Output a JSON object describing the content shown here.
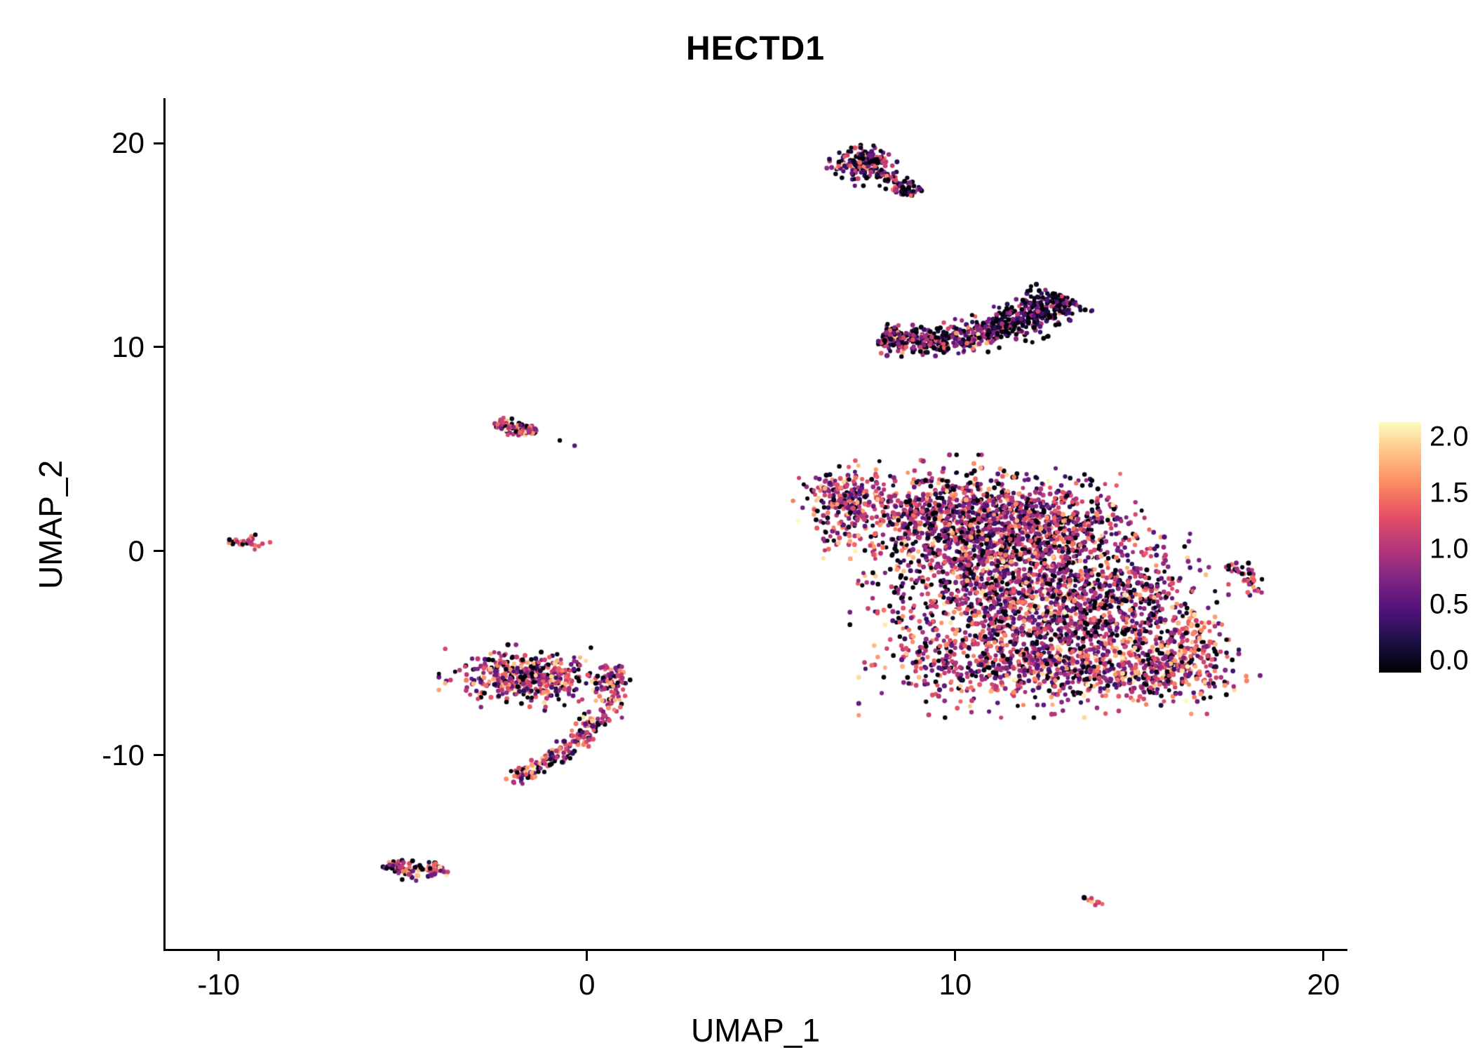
{
  "chart_data": {
    "type": "scatter",
    "title": "HECTD1",
    "xlabel": "UMAP_1",
    "ylabel": "UMAP_2",
    "xlim": [
      -11.5,
      20.65
    ],
    "ylim": [
      -19.6,
      22.2
    ],
    "x_ticks": [
      -10,
      0,
      10,
      20
    ],
    "x_tick_labels": [
      "-10",
      "0",
      "10",
      "20"
    ],
    "y_ticks": [
      -10,
      0,
      10,
      20
    ],
    "y_tick_labels": [
      "-10",
      "0",
      "10",
      "20"
    ],
    "grid": false,
    "legend_position": "right",
    "color": {
      "range": [
        0,
        2
      ],
      "colormap": "magma",
      "stops": [
        [
          0.0,
          "#000004"
        ],
        [
          0.13,
          "#1D1147"
        ],
        [
          0.25,
          "#51127C"
        ],
        [
          0.38,
          "#822681"
        ],
        [
          0.5,
          "#B63679"
        ],
        [
          0.63,
          "#E65164"
        ],
        [
          0.75,
          "#FB8861"
        ],
        [
          0.88,
          "#FEC287"
        ],
        [
          1.0,
          "#FCFDBF"
        ]
      ]
    },
    "legend": {
      "tick_labels": [
        "2.0",
        "1.5",
        "1.0",
        "0.5",
        "0.0"
      ],
      "tick_values": [
        2.0,
        1.5,
        1.0,
        0.5,
        0.0
      ]
    },
    "clusters": [
      {
        "name": "top-streak-head",
        "kind": "gauss",
        "cx": 7.5,
        "cy": 19.0,
        "sx": 0.38,
        "sy": 0.42,
        "n": 150,
        "v_mean": 0.75,
        "v_sd": 0.5,
        "zero_frac": 0.32
      },
      {
        "name": "top-streak-tail",
        "kind": "path",
        "pts": [
          [
            7.85,
            18.55
          ],
          [
            8.35,
            18.05
          ],
          [
            8.95,
            17.5
          ]
        ],
        "w": 0.16,
        "n": 85,
        "v_mean": 0.8,
        "v_sd": 0.45,
        "zero_frac": 0.3
      },
      {
        "name": "crescent-left",
        "kind": "path",
        "pts": [
          [
            7.95,
            10.45
          ],
          [
            8.8,
            10.2
          ],
          [
            9.8,
            10.3
          ],
          [
            10.8,
            10.75
          ]
        ],
        "w": 0.36,
        "n": 330,
        "v_mean": 0.85,
        "v_sd": 0.45,
        "zero_frac": 0.3
      },
      {
        "name": "crescent-right",
        "kind": "path",
        "pts": [
          [
            10.8,
            10.75
          ],
          [
            11.7,
            11.2
          ],
          [
            12.4,
            11.8
          ],
          [
            12.95,
            12.5
          ]
        ],
        "w": 0.4,
        "n": 380,
        "v_mean": 0.55,
        "v_sd": 0.45,
        "zero_frac": 0.5
      },
      {
        "name": "main-left-tip",
        "kind": "gauss",
        "cx": 7.0,
        "cy": 2.4,
        "sx": 0.55,
        "sy": 0.8,
        "n": 230,
        "v_mean": 1.0,
        "v_sd": 0.45,
        "zero_frac": 0.15
      },
      {
        "name": "main-upper-mid",
        "kind": "gauss",
        "cx": 9.8,
        "cy": 1.6,
        "sx": 1.3,
        "sy": 1.2,
        "n": 760,
        "v_mean": 0.95,
        "v_sd": 0.45,
        "zero_frac": 0.18
      },
      {
        "name": "main-upper-right",
        "kind": "gauss",
        "cx": 12.3,
        "cy": 1.2,
        "sx": 1.3,
        "sy": 1.1,
        "n": 650,
        "v_mean": 0.9,
        "v_sd": 0.45,
        "zero_frac": 0.2
      },
      {
        "name": "main-center",
        "kind": "gauss",
        "cx": 11.3,
        "cy": -1.8,
        "sx": 1.6,
        "sy": 1.3,
        "n": 900,
        "v_mean": 0.95,
        "v_sd": 0.45,
        "zero_frac": 0.18
      },
      {
        "name": "main-right",
        "kind": "gauss",
        "cx": 14.3,
        "cy": -2.6,
        "sx": 1.2,
        "sy": 1.4,
        "n": 560,
        "v_mean": 0.95,
        "v_sd": 0.5,
        "zero_frac": 0.18
      },
      {
        "name": "main-bottom",
        "kind": "gauss",
        "cx": 11.8,
        "cy": -5.3,
        "sx": 1.7,
        "sy": 1.1,
        "n": 800,
        "v_mean": 1.0,
        "v_sd": 0.45,
        "zero_frac": 0.15
      },
      {
        "name": "main-bottom-right",
        "kind": "gauss",
        "cx": 15.5,
        "cy": -5.9,
        "sx": 1.1,
        "sy": 0.8,
        "n": 310,
        "v_mean": 1.0,
        "v_sd": 0.5,
        "zero_frac": 0.15
      },
      {
        "name": "main-right-tip",
        "kind": "gauss",
        "cx": 16.4,
        "cy": -4.6,
        "sx": 0.5,
        "sy": 0.9,
        "n": 120,
        "v_mean": 1.1,
        "v_sd": 0.45,
        "zero_frac": 0.12
      },
      {
        "name": "right-streak",
        "kind": "path",
        "pts": [
          [
            17.55,
            -0.6
          ],
          [
            17.95,
            -1.3
          ],
          [
            18.2,
            -2.1
          ]
        ],
        "w": 0.14,
        "n": 40,
        "v_mean": 1.1,
        "v_sd": 0.4,
        "zero_frac": 0.22
      },
      {
        "name": "left-small",
        "kind": "gauss",
        "cx": -9.2,
        "cy": 0.45,
        "sx": 0.27,
        "sy": 0.17,
        "n": 30,
        "v_mean": 1.2,
        "v_sd": 0.35,
        "zero_frac": 0.08
      },
      {
        "name": "upper-left-small",
        "kind": "path",
        "pts": [
          [
            -2.55,
            6.3
          ],
          [
            -1.95,
            6.0
          ],
          [
            -1.4,
            5.8
          ]
        ],
        "w": 0.17,
        "n": 85,
        "v_mean": 1.1,
        "v_sd": 0.4,
        "zero_frac": 0.15
      },
      {
        "name": "upper-left-dots",
        "kind": "points",
        "pts": [
          [
            -0.8,
            5.45
          ],
          [
            -0.35,
            5.15
          ]
        ],
        "n": 2,
        "v_mean": 0.35,
        "v_sd": 0.25,
        "zero_frac": 0.5
      },
      {
        "name": "mid-left-blob",
        "kind": "gauss",
        "cx": -1.55,
        "cy": -6.2,
        "sx": 0.95,
        "sy": 0.62,
        "n": 430,
        "v_mean": 1.05,
        "v_sd": 0.45,
        "zero_frac": 0.14
      },
      {
        "name": "mid-left-hook",
        "kind": "path",
        "pts": [
          [
            0.55,
            -5.6
          ],
          [
            0.8,
            -6.7
          ],
          [
            0.5,
            -7.9
          ],
          [
            -0.1,
            -9.0
          ],
          [
            -0.9,
            -10.1
          ],
          [
            -1.7,
            -10.95
          ],
          [
            -2.1,
            -11.3
          ]
        ],
        "w": 0.2,
        "n": 270,
        "v_mean": 1.05,
        "v_sd": 0.45,
        "zero_frac": 0.16
      },
      {
        "name": "bottom-left-v",
        "kind": "path",
        "pts": [
          [
            -5.35,
            -15.2
          ],
          [
            -4.9,
            -15.7
          ],
          [
            -4.4,
            -15.85
          ],
          [
            -3.95,
            -15.45
          ]
        ],
        "w": 0.18,
        "n": 95,
        "v_mean": 1.0,
        "v_sd": 0.45,
        "zero_frac": 0.22
      },
      {
        "name": "bottom-streak",
        "kind": "points",
        "pts": [
          [
            13.5,
            -16.95
          ],
          [
            13.6,
            -17.05
          ],
          [
            13.7,
            -17.1
          ],
          [
            13.75,
            -17.2
          ],
          [
            13.85,
            -17.25
          ],
          [
            13.95,
            -17.35
          ],
          [
            13.55,
            -17.0
          ],
          [
            13.8,
            -17.15
          ],
          [
            13.9,
            -17.3
          ],
          [
            13.65,
            -17.05
          ]
        ],
        "n": 10,
        "v_mean": 1.25,
        "v_sd": 0.25,
        "zero_frac": 0.05
      }
    ]
  }
}
